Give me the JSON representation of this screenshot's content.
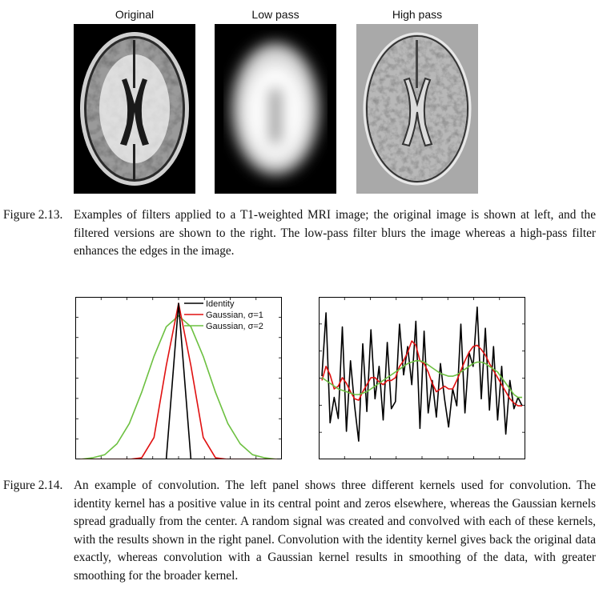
{
  "fig13": {
    "panel_labels": [
      "Original",
      "Low pass",
      "High pass"
    ],
    "caption_number": "Figure 2.13.",
    "caption_text": "Examples of filters applied to a T1-weighted MRI image; the original image is shown at left, and the filtered versions are shown to the right. The low-pass filter blurs the image whereas a high-pass filter enhances the edges in the image."
  },
  "fig14": {
    "caption_number": "Figure 2.14.",
    "caption_text": "An example of convolution. The left panel shows three different kernels used for convolution. The identity kernel has a positive value in its central point and zeros elsewhere, whereas the Gaussian kernels spread gradually from the center. A random signal was created and convolved with each of these kernels, with the results shown in the right panel. Convolution with the identity kernel gives back the original data exactly, whereas convolution with a Gaussian kernel results in smoothing of the data, with greater smoothing for the broader kernel."
  },
  "chart_data": [
    {
      "type": "line",
      "panel": "left",
      "x": [
        -8,
        -7,
        -6,
        -5,
        -4,
        -3,
        -2,
        -1,
        0,
        1,
        2,
        3,
        4,
        5,
        6,
        7,
        8
      ],
      "series": [
        {
          "name": "Identity",
          "color": "#000000",
          "values": [
            0,
            0,
            0,
            0,
            0,
            0,
            0,
            0,
            1,
            0,
            0,
            0,
            0,
            0,
            0,
            0,
            0
          ]
        },
        {
          "name": "Gaussian, σ=1",
          "color": "#e01010",
          "values": [
            0,
            0,
            0,
            0,
            0,
            0.01,
            0.14,
            0.6,
            1,
            0.6,
            0.14,
            0.01,
            0,
            0,
            0,
            0,
            0
          ]
        },
        {
          "name": "Gaussian, σ=2",
          "color": "#6cc040",
          "values": [
            0,
            0.01,
            0.03,
            0.1,
            0.23,
            0.43,
            0.66,
            0.85,
            0.92,
            0.85,
            0.66,
            0.43,
            0.23,
            0.1,
            0.03,
            0.01,
            0
          ]
        }
      ],
      "legend": "top-right"
    },
    {
      "type": "line",
      "panel": "right",
      "x": [
        1,
        2,
        3,
        4,
        5,
        6,
        7,
        8,
        9,
        10,
        11,
        12,
        13,
        14,
        15,
        16,
        17,
        18,
        19,
        20,
        21,
        22,
        23,
        24,
        25,
        26,
        27,
        28,
        29,
        30,
        31,
        32,
        33,
        34,
        35,
        36,
        37,
        38,
        39,
        40,
        41,
        42,
        43,
        44,
        45,
        46,
        47,
        48,
        49,
        50
      ],
      "series": [
        {
          "name": "Identity",
          "color": "#000000",
          "values": [
            0.51,
            0.96,
            0.18,
            0.36,
            0.21,
            0.86,
            0.12,
            0.62,
            0.3,
            0.05,
            0.74,
            0.26,
            0.84,
            0.35,
            0.58,
            0.2,
            0.75,
            0.28,
            0.33,
            0.88,
            0.52,
            0.72,
            0.45,
            0.9,
            0.14,
            0.83,
            0.25,
            0.48,
            0.22,
            0.6,
            0.35,
            0.15,
            0.42,
            0.3,
            0.88,
            0.25,
            0.68,
            0.58,
            1.0,
            0.35,
            0.85,
            0.27,
            0.72,
            0.2,
            0.58,
            0.1,
            0.48,
            0.28,
            0.36,
            0.3
          ]
        },
        {
          "name": "Gaussian, σ=1",
          "color": "#e01010",
          "values": [
            0.48,
            0.58,
            0.52,
            0.42,
            0.44,
            0.5,
            0.46,
            0.4,
            0.35,
            0.34,
            0.4,
            0.45,
            0.5,
            0.5,
            0.47,
            0.45,
            0.48,
            0.48,
            0.5,
            0.58,
            0.62,
            0.68,
            0.76,
            0.73,
            0.62,
            0.6,
            0.54,
            0.46,
            0.4,
            0.42,
            0.44,
            0.42,
            0.42,
            0.48,
            0.55,
            0.62,
            0.68,
            0.72,
            0.73,
            0.7,
            0.66,
            0.6,
            0.55,
            0.5,
            0.45,
            0.4,
            0.35,
            0.32,
            0.3,
            0.3
          ]
        },
        {
          "name": "Gaussian, σ=2",
          "color": "#6cc040",
          "values": [
            0.5,
            0.48,
            0.46,
            0.44,
            0.42,
            0.41,
            0.4,
            0.39,
            0.38,
            0.38,
            0.39,
            0.4,
            0.42,
            0.44,
            0.46,
            0.48,
            0.5,
            0.52,
            0.54,
            0.56,
            0.58,
            0.6,
            0.61,
            0.62,
            0.62,
            0.61,
            0.59,
            0.57,
            0.55,
            0.53,
            0.52,
            0.51,
            0.51,
            0.52,
            0.54,
            0.56,
            0.58,
            0.6,
            0.61,
            0.61,
            0.6,
            0.58,
            0.56,
            0.54,
            0.5,
            0.46,
            0.42,
            0.38,
            0.36,
            0.36
          ]
        }
      ]
    }
  ]
}
